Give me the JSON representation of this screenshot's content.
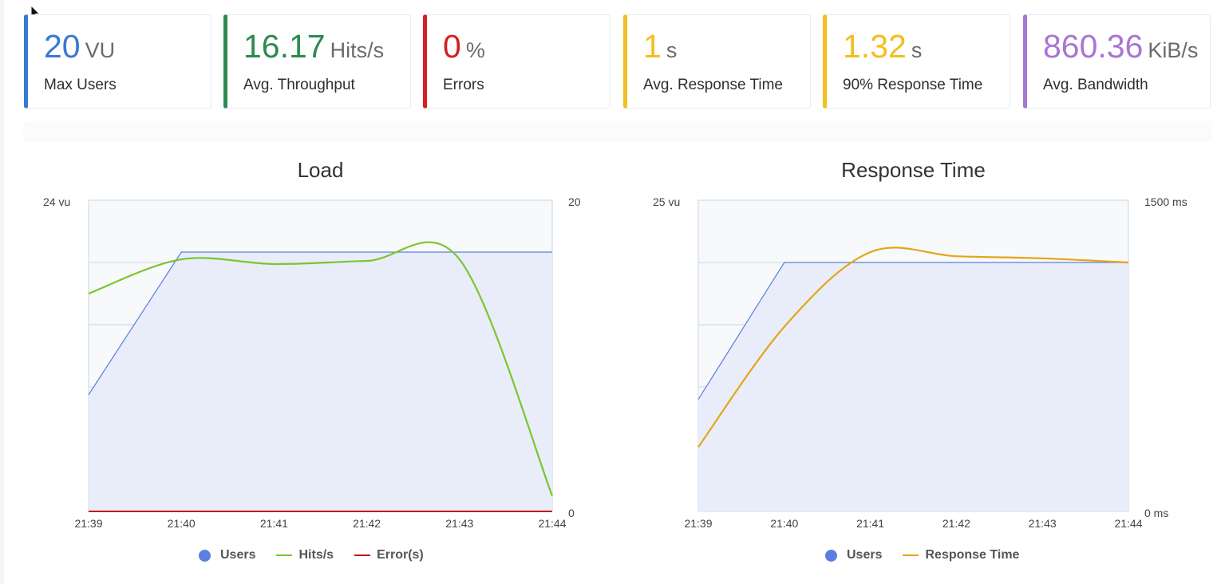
{
  "stats": [
    {
      "value": "20",
      "unit": "VU",
      "label": "Max Users",
      "color": "#3a78d6"
    },
    {
      "value": "16.17",
      "unit": "Hits/s",
      "label": "Avg. Throughput",
      "color": "#2c8a50"
    },
    {
      "value": "0",
      "unit": "%",
      "label": "Errors",
      "color": "#d42020"
    },
    {
      "value": "1",
      "unit": "s",
      "label": "Avg. Response Time",
      "color": "#f2bf1e"
    },
    {
      "value": "1.32",
      "unit": "s",
      "label": "90% Response Time",
      "color": "#f2bf1e"
    },
    {
      "value": "860.36",
      "unit": "KiB/s",
      "label": "Avg. Bandwidth",
      "color": "#a975d6"
    }
  ],
  "charts": {
    "load": {
      "title": "Load",
      "left_axis_max": "24 vu",
      "right_axis_max": "20",
      "right_axis_min": "0",
      "x_ticks": [
        "21:39",
        "21:40",
        "21:41",
        "21:42",
        "21:43",
        "21:44"
      ],
      "legend": {
        "users": "Users",
        "hits": "Hits/s",
        "errors": "Error(s)"
      }
    },
    "response": {
      "title": "Response Time",
      "left_axis_max": "25 vu",
      "right_axis_max": "1500 ms",
      "right_axis_min": "0 ms",
      "x_ticks": [
        "21:39",
        "21:40",
        "21:41",
        "21:42",
        "21:43",
        "21:44"
      ],
      "legend": {
        "users": "Users",
        "response": "Response Time"
      }
    }
  },
  "colors": {
    "users": "#5b7fe0",
    "hits": "#7cc52c",
    "errors": "#c01b1b",
    "response": "#e5a515"
  },
  "chart_data": [
    {
      "type": "line",
      "title": "Load",
      "x": [
        "21:39",
        "21:40",
        "21:41",
        "21:42",
        "21:43",
        "21:44"
      ],
      "series": [
        {
          "name": "Users",
          "axis": "left",
          "ylim": [
            0,
            24
          ],
          "values": [
            9,
            20,
            20,
            20,
            20,
            20
          ]
        },
        {
          "name": "Hits/s",
          "axis": "right",
          "ylim": [
            0,
            20
          ],
          "values": [
            14,
            16.2,
            15.9,
            16.1,
            16.2,
            1
          ]
        },
        {
          "name": "Error(s)",
          "axis": "right",
          "ylim": [
            0,
            20
          ],
          "values": [
            0,
            0,
            0,
            0,
            0,
            0
          ]
        }
      ]
    },
    {
      "type": "line",
      "title": "Response Time",
      "x": [
        "21:39",
        "21:40",
        "21:41",
        "21:42",
        "21:43",
        "21:44"
      ],
      "series": [
        {
          "name": "Users",
          "axis": "left",
          "ylim": [
            0,
            25
          ],
          "values": [
            9,
            20,
            20,
            20,
            20,
            20
          ]
        },
        {
          "name": "Response Time",
          "axis": "right",
          "unit": "ms",
          "ylim": [
            0,
            1500
          ],
          "values": [
            310,
            890,
            1250,
            1230,
            1220,
            1200
          ]
        }
      ]
    }
  ]
}
